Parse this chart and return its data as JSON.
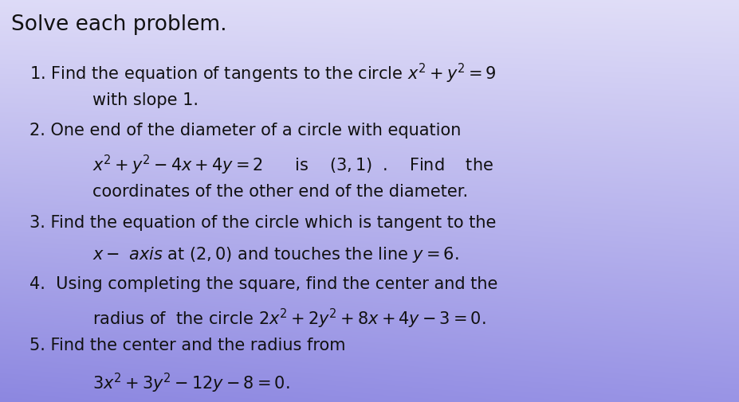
{
  "figsize": [
    9.28,
    5.05
  ],
  "dpi": 100,
  "title": "Solve each problem.",
  "title_fontsize": 19,
  "title_fontweight": "normal",
  "text_color": "#111111",
  "body_fontsize": 15.0,
  "grad_tl": [
    0.87,
    0.86,
    0.97
  ],
  "grad_tr": [
    0.88,
    0.87,
    0.97
  ],
  "grad_bl": [
    0.55,
    0.53,
    0.88
  ],
  "grad_br": [
    0.6,
    0.58,
    0.9
  ]
}
